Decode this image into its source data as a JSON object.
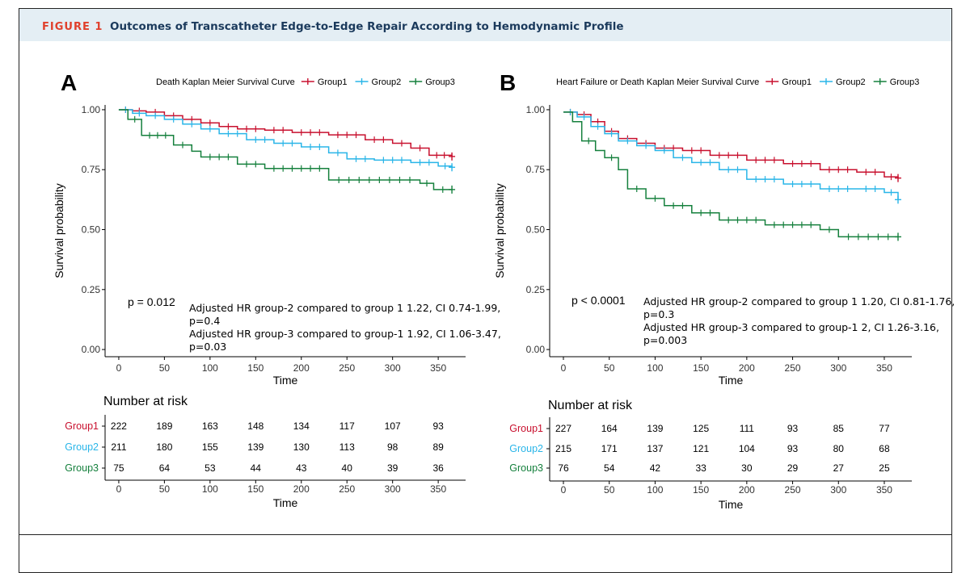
{
  "figure": {
    "label": "FIGURE 1",
    "title": "Outcomes of Transcatheter Edge-to-Edge Repair According to Hemodynamic Profile"
  },
  "colors": {
    "Group1": "#c8102e",
    "Group2": "#29b5e8",
    "Group3": "#15803d",
    "accent": "#e0402c",
    "header_bg": "#e4eef4",
    "title_text": "#1b3a5c"
  },
  "chart_data": [
    {
      "panel": "A",
      "type": "line",
      "title": "Death Kaplan Meier Survival Curve",
      "legend": [
        "Group1",
        "Group2",
        "Group3"
      ],
      "xlabel": "Time",
      "ylabel": "Survival probability",
      "xlim": [
        -15,
        380
      ],
      "ylim": [
        -0.03,
        1.02
      ],
      "xticks": [
        0,
        50,
        100,
        150,
        200,
        250,
        300,
        350
      ],
      "yticks": [
        0.0,
        0.25,
        0.5,
        0.75,
        1.0
      ],
      "ytick_labels": [
        "0.00",
        "0.25",
        "0.50",
        "0.75",
        "1.00"
      ],
      "pvalue": "p = 0.012",
      "annotations": [
        "Adjusted HR group-2 compared to group 1 1.22, CI 0.74-1.99,",
        "p=0.4",
        "Adjusted HR group-3 compared to group-1 1.92, CI 1.06-3.47,",
        "p=0.03"
      ],
      "series": [
        {
          "name": "Group1",
          "x": [
            0,
            15,
            30,
            50,
            70,
            90,
            110,
            130,
            160,
            190,
            230,
            270,
            300,
            320,
            340,
            365
          ],
          "y": [
            1.0,
            0.995,
            0.99,
            0.975,
            0.96,
            0.945,
            0.93,
            0.92,
            0.915,
            0.905,
            0.895,
            0.875,
            0.86,
            0.84,
            0.81,
            0.805
          ]
        },
        {
          "name": "Group2",
          "x": [
            0,
            15,
            30,
            50,
            70,
            90,
            110,
            140,
            170,
            200,
            230,
            250,
            280,
            320,
            350,
            365
          ],
          "y": [
            1.0,
            0.985,
            0.975,
            0.96,
            0.94,
            0.92,
            0.9,
            0.875,
            0.86,
            0.845,
            0.82,
            0.795,
            0.79,
            0.78,
            0.765,
            0.76
          ]
        },
        {
          "name": "Group3",
          "x": [
            0,
            10,
            25,
            60,
            80,
            90,
            130,
            160,
            230,
            330,
            345,
            365
          ],
          "y": [
            1.0,
            0.96,
            0.893,
            0.853,
            0.827,
            0.803,
            0.773,
            0.755,
            0.707,
            0.693,
            0.667,
            0.667
          ]
        }
      ],
      "risk_table": {
        "title": "Number at risk",
        "times": [
          0,
          50,
          100,
          150,
          200,
          250,
          300,
          350
        ],
        "rows": [
          {
            "group": "Group1",
            "values": [
              "222",
              "189",
              "163",
              "148",
              "134",
              "117",
              "107",
              "93"
            ]
          },
          {
            "group": "Group2",
            "values": [
              "211",
              "180",
              "155",
              "139",
              "130",
              "113",
              "98",
              "89"
            ]
          },
          {
            "group": "Group3",
            "values": [
              "75",
              "64",
              "53",
              "44",
              "43",
              "40",
              "39",
              "36"
            ]
          }
        ],
        "xlabel": "Time"
      }
    },
    {
      "panel": "B",
      "type": "line",
      "title": "Heart Failure or Death Kaplan Meier Survival Curve",
      "legend": [
        "Group1",
        "Group2",
        "Group3"
      ],
      "xlabel": "Time",
      "ylabel": "Survival probability",
      "xlim": [
        -15,
        380
      ],
      "ylim": [
        -0.03,
        1.02
      ],
      "xticks": [
        0,
        50,
        100,
        150,
        200,
        250,
        300,
        350
      ],
      "yticks": [
        0.0,
        0.25,
        0.5,
        0.75,
        1.0
      ],
      "ytick_labels": [
        "0.00",
        "0.25",
        "0.50",
        "0.75",
        "1.00"
      ],
      "pvalue": "p < 0.0001",
      "annotations": [
        "Adjusted HR group-2 compared to group 1 1.20, CI 0.81-1.76,",
        "p=0.3",
        "Adjusted HR group-3 compared to group-1 2, CI 1.26-3.16,",
        "p=0.003"
      ],
      "series": [
        {
          "name": "Group1",
          "x": [
            0,
            15,
            30,
            45,
            60,
            80,
            100,
            130,
            160,
            200,
            240,
            280,
            320,
            350,
            365
          ],
          "y": [
            0.99,
            0.98,
            0.95,
            0.91,
            0.88,
            0.86,
            0.84,
            0.83,
            0.81,
            0.79,
            0.775,
            0.75,
            0.74,
            0.72,
            0.715
          ]
        },
        {
          "name": "Group2",
          "x": [
            0,
            15,
            30,
            45,
            60,
            80,
            100,
            120,
            140,
            170,
            200,
            240,
            280,
            320,
            350,
            365
          ],
          "y": [
            0.99,
            0.97,
            0.93,
            0.9,
            0.87,
            0.85,
            0.83,
            0.8,
            0.78,
            0.75,
            0.71,
            0.69,
            0.67,
            0.67,
            0.655,
            0.625
          ]
        },
        {
          "name": "Group3",
          "x": [
            0,
            10,
            20,
            35,
            45,
            60,
            70,
            90,
            110,
            140,
            170,
            220,
            280,
            300,
            365
          ],
          "y": [
            0.99,
            0.95,
            0.87,
            0.83,
            0.8,
            0.75,
            0.67,
            0.63,
            0.6,
            0.57,
            0.54,
            0.52,
            0.5,
            0.47,
            0.47
          ]
        }
      ],
      "risk_table": {
        "title": "Number at risk",
        "times": [
          0,
          50,
          100,
          150,
          200,
          250,
          300,
          350
        ],
        "rows": [
          {
            "group": "Group1",
            "values": [
              "227",
              "164",
              "139",
              "125",
              "111",
              "93",
              "85",
              "77"
            ]
          },
          {
            "group": "Group2",
            "values": [
              "215",
              "171",
              "137",
              "121",
              "104",
              "93",
              "80",
              "68"
            ]
          },
          {
            "group": "Group3",
            "values": [
              "76",
              "54",
              "42",
              "33",
              "30",
              "29",
              "27",
              "25"
            ]
          }
        ],
        "xlabel": "Time"
      }
    }
  ]
}
